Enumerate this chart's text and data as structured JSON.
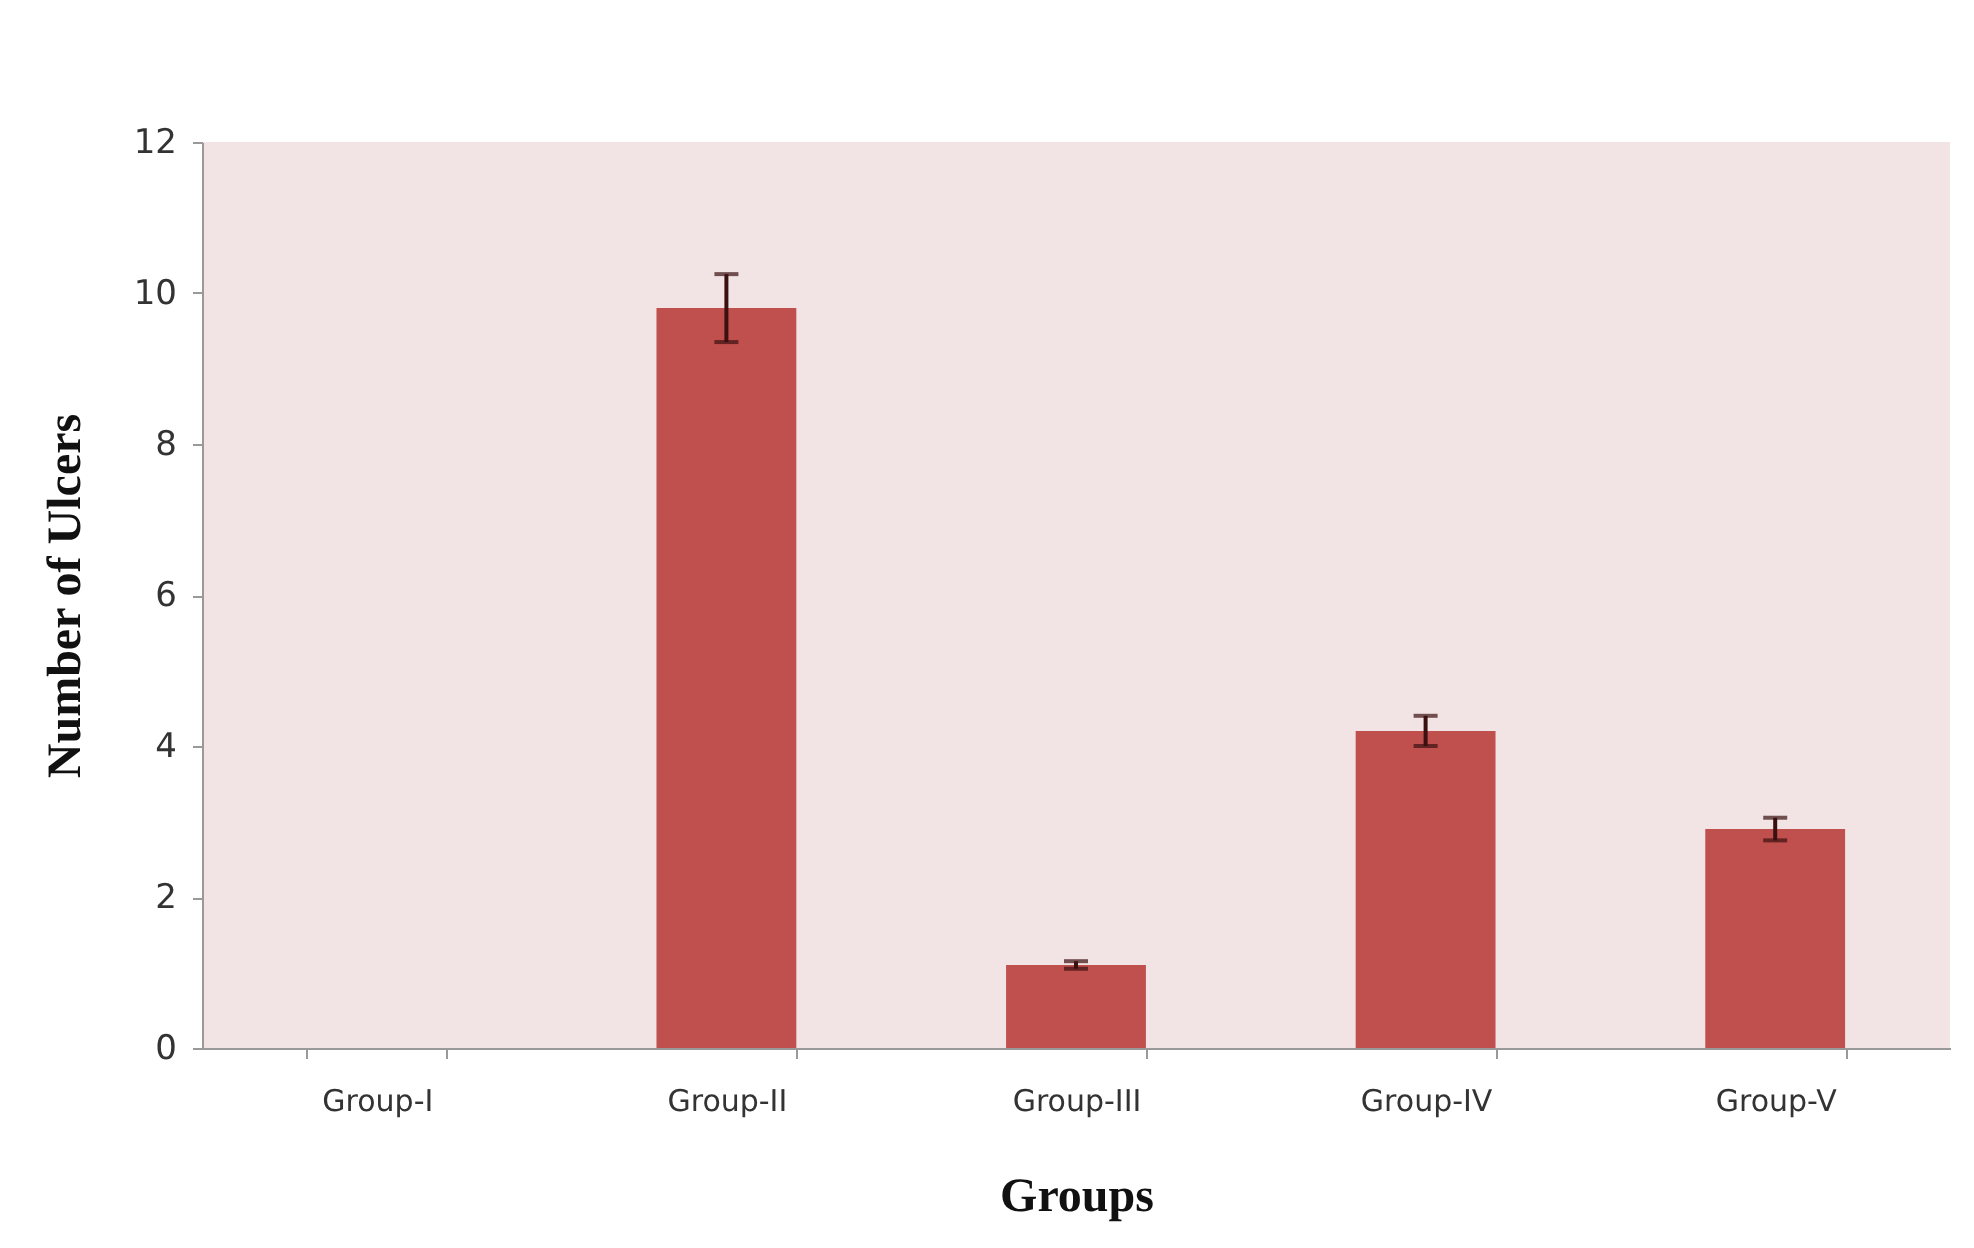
{
  "chart_data": {
    "type": "bar",
    "xlabel": "Groups",
    "ylabel": "Number of Ulcers",
    "categories": [
      "Group-I",
      "Group-II",
      "Group-III",
      "Group-IV",
      "Group-V"
    ],
    "values": [
      0,
      9.8,
      1.1,
      4.2,
      2.9
    ],
    "errors": [
      null,
      0.45,
      0.05,
      0.2,
      0.15
    ],
    "color": "#c0504d",
    "ylim": [
      0,
      12
    ],
    "yticks": [
      0,
      2,
      4,
      6,
      8,
      10,
      12
    ],
    "grid": false
  }
}
